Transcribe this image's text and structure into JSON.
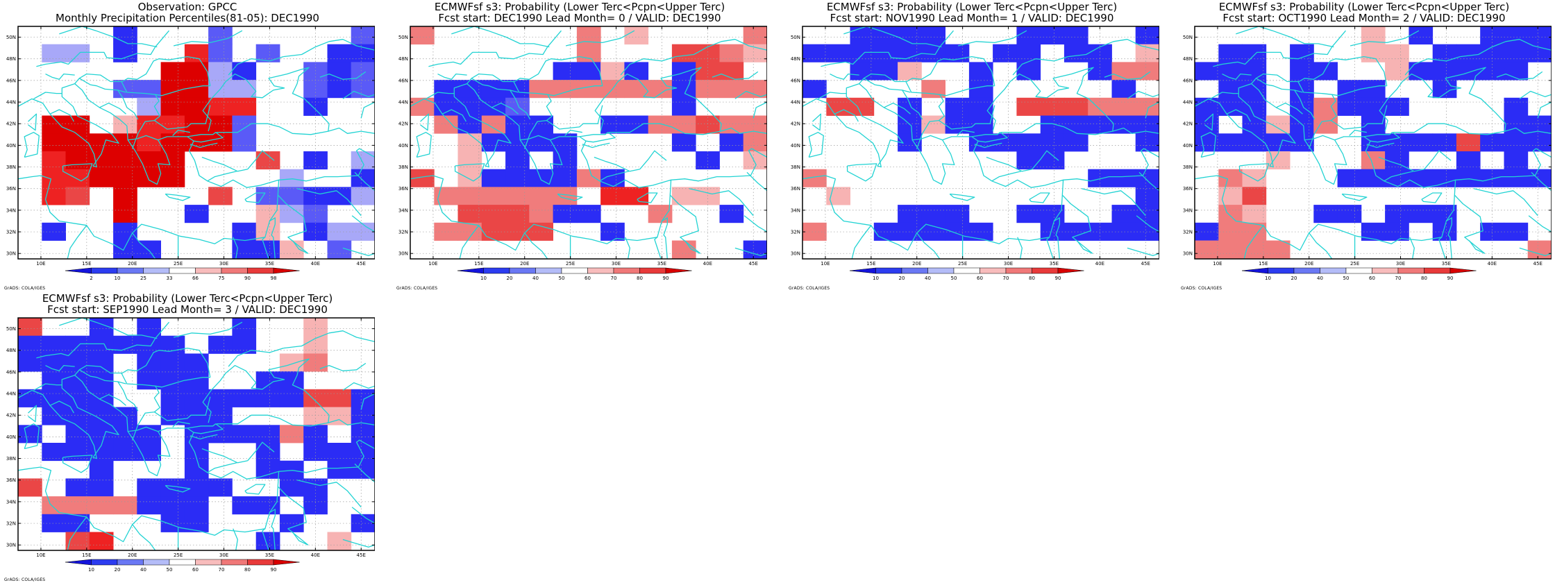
{
  "panels": [
    {
      "title1": "Observation: GPCC",
      "title2": "Monthly Precipitation Percentiles(81-05): DEC1990",
      "colorbar": [
        "2",
        "10",
        "25",
        "33",
        "66",
        "75",
        "90",
        "98"
      ],
      "cells": [
        "000010002000002",
        "033010072020011",
        "000000883100212",
        "000022883300212",
        "000003887700100",
        "088047788200000",
        "088887888200000",
        "078888800060103",
        "077888800003001",
        "076080006022113",
        "000080010043200",
        "010010000140133",
        "000011000114020"
      ]
    },
    {
      "title1": "ECMWFsf s3: Probability (Lower Terc<Pcpn<Upper Terc)",
      "title2": "Fcst start: DEC1990   Lead Month= 0 / VALID: DEC1990",
      "colorbar": [
        "10",
        "20",
        "40",
        "50",
        "60",
        "70",
        "80",
        "90"
      ],
      "cells": [
        "500000050400005",
        "000000050006654",
        "000000114101660",
        "011115555551555",
        "511120000001000",
        "051511001155655",
        "004111100001015",
        "004010100000104",
        "604111151000000",
        "055555507704400",
        "006665110050010",
        "055666001000000",
        "000000000005001"
      ]
    },
    {
      "title1": "ECMWFsf s3: Probability (Lower Terc<Pcpn<Upper Terc)",
      "title2": "Fcst start: NOV1990   Lead Month= 1 / VALID: DEC1990",
      "colorbar": [
        "10",
        "20",
        "40",
        "50",
        "60",
        "70",
        "80",
        "90"
      ],
      "cells": [
        "001111000111001",
        "111111101101104",
        "001140010100155",
        "100005010000010",
        "066010110666555",
        "000014110011111",
        "000010011111001",
        "000000000110000",
        "500000000000111",
        "040000000000001",
        "000011100110011",
        "500111110011111",
        "000000000000000"
      ]
    },
    {
      "title1": "ECMWFsf s3: Probability (Lower Terc<Pcpn<Upper Terc)",
      "title2": "Fcst start: OCT1990   Lead Month= 2 / VALID: DEC1990",
      "colorbar": [
        "10",
        "20",
        "40",
        "50",
        "60",
        "70",
        "80",
        "90"
      ],
      "cells": [
        "000000040100111",
        "011010044011111",
        "111011004111110",
        "011010110010000",
        "111015111000010",
        "101415010000011",
        "111110011116111",
        "000400051001010",
        "054000111111111",
        "046000000000000",
        "054001101110000",
        "155000011010110",
        "555500000000005"
      ]
    },
    {
      "title1": "ECMWFsf s3: Probability (Lower Terc<Pcpn<Upper Terc)",
      "title2": "Fcst start: SEP1990   Lead Month= 3 / VALID: DEC1990",
      "colorbar": [
        "10",
        "20",
        "40",
        "50",
        "60",
        "70",
        "80",
        "90"
      ],
      "cells": [
        "600101000100400",
        "111111101100400",
        "111101110004500",
        "011101110011000",
        "111100111111661",
        "011110111000441",
        "101111011115101",
        "011111010010111",
        "000100010011011",
        "601101111001100",
        "055551110110100",
        "011000110001001",
        "006700000010040"
      ]
    }
  ],
  "map": {
    "lat_labels": [
      "50N",
      "48N",
      "46N",
      "44N",
      "42N",
      "40N",
      "38N",
      "36N",
      "34N",
      "32N",
      "30N"
    ],
    "lon_labels": [
      "10E",
      "15E",
      "20E",
      "25E",
      "30E",
      "35E",
      "40E",
      "45E"
    ],
    "lat_range": [
      29.5,
      51
    ],
    "lon_range": [
      7.5,
      46.5
    ],
    "palette": {
      "0": "#ffffff",
      "1": "#2b2cf5",
      "2": "#5a5af7",
      "3": "#a8a8f8",
      "4": "#f7b3b3",
      "5": "#f07c7c",
      "6": "#ea4646",
      "7": "#ee2222",
      "8": "#dd0000"
    },
    "coast_color": "#22d3d3",
    "colorbar_colors": [
      "#1414dc",
      "#2c3cf0",
      "#6a78f4",
      "#b4bcf8",
      "#ffffff",
      "#f8bcbc",
      "#f07878",
      "#e83a3a",
      "#d80000"
    ],
    "credit": "GrADS: COLA/IGES"
  }
}
